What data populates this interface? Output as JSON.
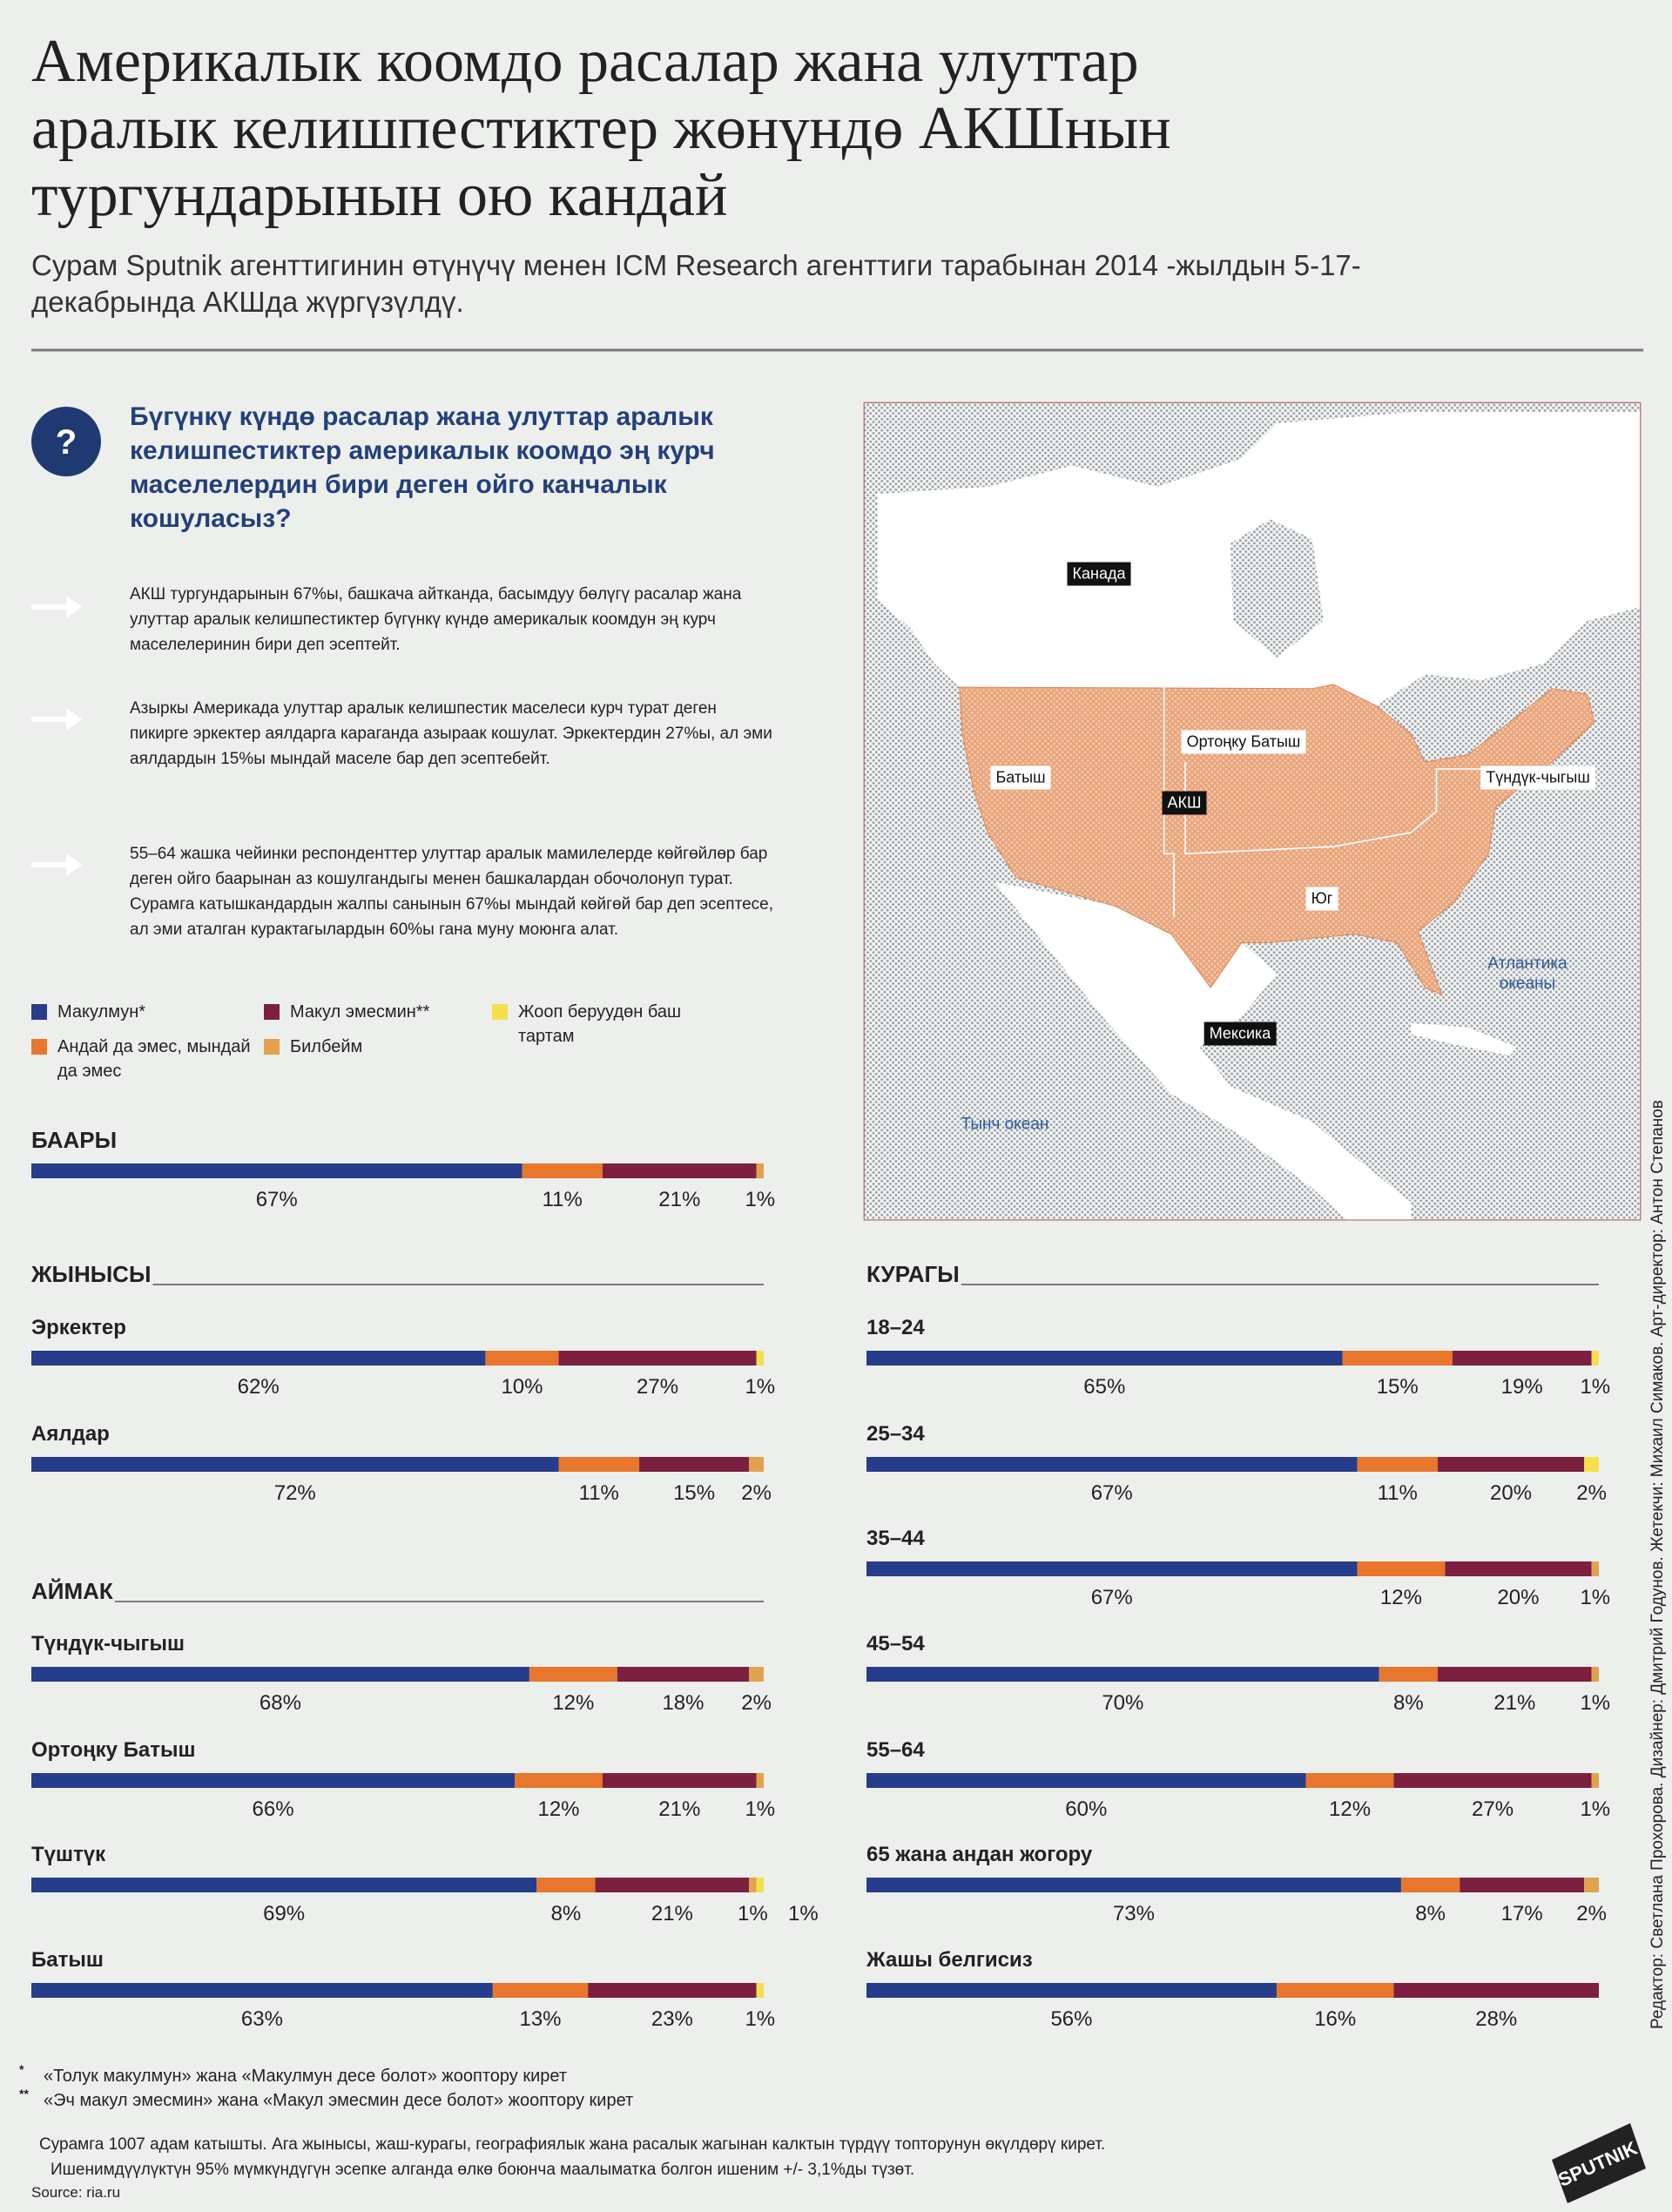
{
  "header": {
    "title": [
      "Америкалык коомдо расалар жана улуттар",
      "аралык келишпестиктер жөнүндө АКШнын",
      "тургундарынын ою кандай"
    ],
    "subtitle": "Сурам Sputnik агенттигинин өтүнүчү менен ICM Research агенттиги тарабынан 2014 -жылдын 5-17-декабрында АКШда жүргүзүлдү."
  },
  "question": {
    "icon": "?",
    "text": "Бүгүнкү күндө расалар жана улуттар аралык келишпестиктер америкалык коомдо эң курч маселелердин бири деген ойго канчалык кошуласыз?"
  },
  "findings": [
    "АКШ тургундарынын 67%ы, башкача айтканда, басымдуу бөлүгү расалар жана улуттар аралык келишпестиктер бүгүнкү күндө америкалык коомдун эң курч маселелеринин бири деп эсептейт.",
    "Азыркы Америкада улуттар аралык келишпестик маселеси курч турат деген пикирге эркектер аялдарга караганда азыраак кошулат. Эркектердин 27%ы, ал эми аялдардын 15%ы мындай маселе бар деп эсептебейт.",
    "55–64 жашка чейинки респонденттер улуттар аралык мамилелерде көйгөйлөр бар деген ойго баарынан аз кошулгандыгы менен башкалардан обочолонуп турат. Сурамга катышкандардын жалпы санынын 67%ы мындай көйгөй бар деп эсептесе, ал эми аталган курактагылардын 60%ы гана муну моюнга алат."
  ],
  "map": {
    "countries": [
      "Канада",
      "АКШ",
      "Мексика"
    ],
    "regions": [
      "Ортоңку Батыш",
      "Батыш",
      "Түндүк-чыгыш",
      "Юг"
    ],
    "oceans": [
      "Атлантика океаны",
      "Тынч океан"
    ]
  },
  "chart_data": {
    "type": "stacked-bar",
    "xlim": [
      0,
      100
    ],
    "series": [
      {
        "name": "Макулмун*",
        "color": "#253d8a"
      },
      {
        "name": "Андай да эмес, мындай да эмес",
        "color": "#e8762d"
      },
      {
        "name": "Макул эмесмин**",
        "color": "#7d1f40"
      },
      {
        "name": "Билбейм",
        "color": "#e0a24c"
      },
      {
        "name": "Жооп беруудөн баш тартам",
        "color": "#f3e04b"
      }
    ],
    "sections": [
      {
        "title": "БААРЫ",
        "groups": [
          {
            "values": [
              67,
              11,
              21,
              1,
              null
            ],
            "value_labels": [
              "67%",
              "11%",
              "21%",
              "1%",
              null
            ]
          }
        ]
      },
      {
        "title": "ЖЫНЫСЫ",
        "groups": [
          {
            "label": "Эркектер",
            "values": [
              62,
              10,
              27,
              null,
              1
            ],
            "value_labels": [
              "62%",
              "10%",
              "27%",
              null,
              "1%"
            ]
          },
          {
            "label": "Аялдар",
            "values": [
              72,
              11,
              15,
              2,
              null
            ],
            "value_labels": [
              "72%",
              "11%",
              "15%",
              "2%",
              null
            ]
          }
        ]
      },
      {
        "title": "АЙМАК",
        "groups": [
          {
            "label": "Түндүк-чыгыш",
            "values": [
              68,
              12,
              18,
              2,
              null
            ],
            "value_labels": [
              "68%",
              "12%",
              "18%",
              "2%",
              null
            ]
          },
          {
            "label": "Ортоңку Батыш",
            "values": [
              66,
              12,
              21,
              1,
              null
            ],
            "value_labels": [
              "66%",
              "12%",
              "21%",
              "1%",
              null
            ]
          },
          {
            "label": "Түштүк",
            "values": [
              69,
              8,
              21,
              1,
              1
            ],
            "value_labels": [
              "69%",
              "8%",
              "21%",
              "1%",
              "1%"
            ]
          },
          {
            "label": "Батыш",
            "values": [
              63,
              13,
              23,
              null,
              1
            ],
            "value_labels": [
              "63%",
              "13%",
              "23%",
              null,
              "1%"
            ]
          }
        ]
      },
      {
        "title": "КУРАГЫ",
        "groups": [
          {
            "label": "18–24",
            "values": [
              65,
              15,
              19,
              null,
              1
            ],
            "value_labels": [
              "65%",
              "15%",
              "19%",
              null,
              "1%"
            ]
          },
          {
            "label": "25–34",
            "values": [
              67,
              11,
              20,
              null,
              2
            ],
            "value_labels": [
              "67%",
              "11%",
              "20%",
              null,
              "2%"
            ]
          },
          {
            "label": "35–44",
            "values": [
              67,
              12,
              20,
              1,
              null
            ],
            "value_labels": [
              "67%",
              "12%",
              "20%",
              "1%",
              null
            ]
          },
          {
            "label": "45–54",
            "values": [
              70,
              8,
              21,
              1,
              null
            ],
            "value_labels": [
              "70%",
              "8%",
              "21%",
              "1%",
              null
            ]
          },
          {
            "label": "55–64",
            "values": [
              60,
              12,
              27,
              1,
              null
            ],
            "value_labels": [
              "60%",
              "12%",
              "27%",
              "1%",
              null
            ]
          },
          {
            "label": "65 жана андан жогору",
            "values": [
              73,
              8,
              17,
              2,
              null
            ],
            "value_labels": [
              "73%",
              "8%",
              "17%",
              "2%",
              null
            ]
          },
          {
            "label": "Жашы белгисиз",
            "values": [
              56,
              16,
              28,
              null,
              null
            ],
            "value_labels": [
              "56%",
              "16%",
              "28%",
              null,
              null
            ]
          }
        ]
      }
    ]
  },
  "footnotes": [
    {
      "mark": "*",
      "text": "«Толук макулмун» жана «Макулмун десе болот» жооптору кирет"
    },
    {
      "mark": "**",
      "text": "«Эч макул эмесмин» жана «Макул эмесмин десе болот» жооптору кирет"
    }
  ],
  "note": [
    "Сурамга 1007 адам катышты. Ага жынысы, жаш-курагы, географиялык жана расалык жагынан калктын түрдүү топторунун өкүлдөрү кирет.",
    "Ишенимдүүлүктүн 95% мүмкүндүгүн эсепке алганда өлкө боюнча маалыматка болгон ишеним +/- 3,1%ды түзөт."
  ],
  "source": "Source: ria.ru",
  "credits": "Редактор: Светлана Прохорова. Дизайнер: Дмитрий Годунов. Жетекчи: Михаил Симаков. Арт-директор: Антон Степанов",
  "logo": "SPUTNIK"
}
